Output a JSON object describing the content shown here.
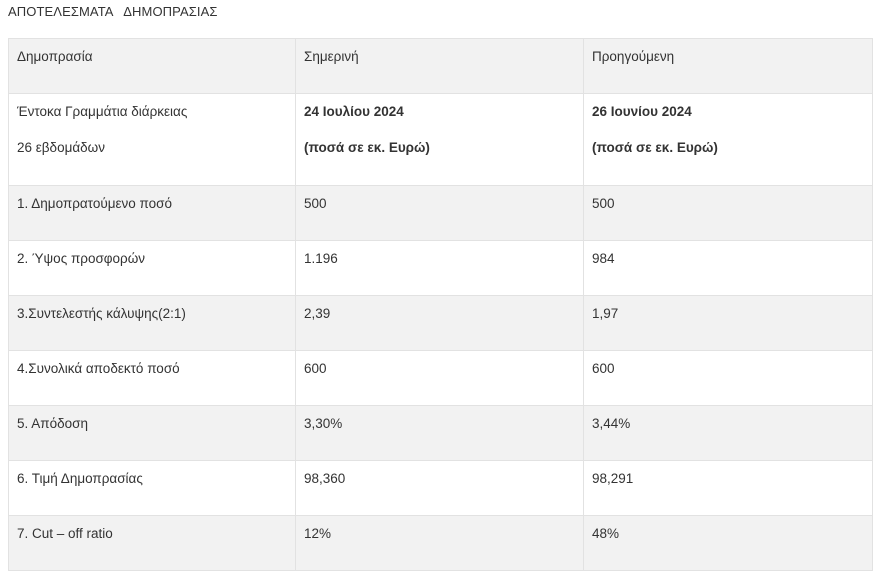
{
  "page_title": "ΑΠΟΤΕΛΕΣΜΑΤΑ   ΔΗΜΟΠΡΑΣΙΑΣ",
  "header": {
    "col1": "Δημοπρασία",
    "col2": "Σημερινή",
    "col3": "Προηγούμενη"
  },
  "sub_header": {
    "col1_line1": "Έντοκα Γραμμάτια διάρκειας",
    "col1_line2": "26 εβδομάδων",
    "col2_line1": "24 Ιουλίου 2024",
    "col2_line2": "(ποσά σε εκ. Ευρώ)",
    "col3_line1": "26 Ιουνίου 2024",
    "col3_line2": "(ποσά σε εκ. Ευρώ)"
  },
  "rows": [
    {
      "label": "1. Δημοπρατούμενο ποσό",
      "current": "500",
      "previous": "500"
    },
    {
      "label": "2. Ύψος προσφορών",
      "current": "1.196",
      "previous": "984"
    },
    {
      "label": "3.Συντελεστής κάλυψης(2:1)",
      "current": "2,39",
      "previous": "1,97"
    },
    {
      "label": "4.Συνολικά αποδεκτό ποσό",
      "current": "600",
      "previous": "600"
    },
    {
      "label": "5. Απόδοση",
      "current": "3,30%",
      "previous": "3,44%"
    },
    {
      "label": "6. Τιμή Δημοπρασίας",
      "current": "98,360",
      "previous": "98,291"
    },
    {
      "label": "7. Cut – off ratio",
      "current": "12%",
      "previous": "48%"
    }
  ]
}
